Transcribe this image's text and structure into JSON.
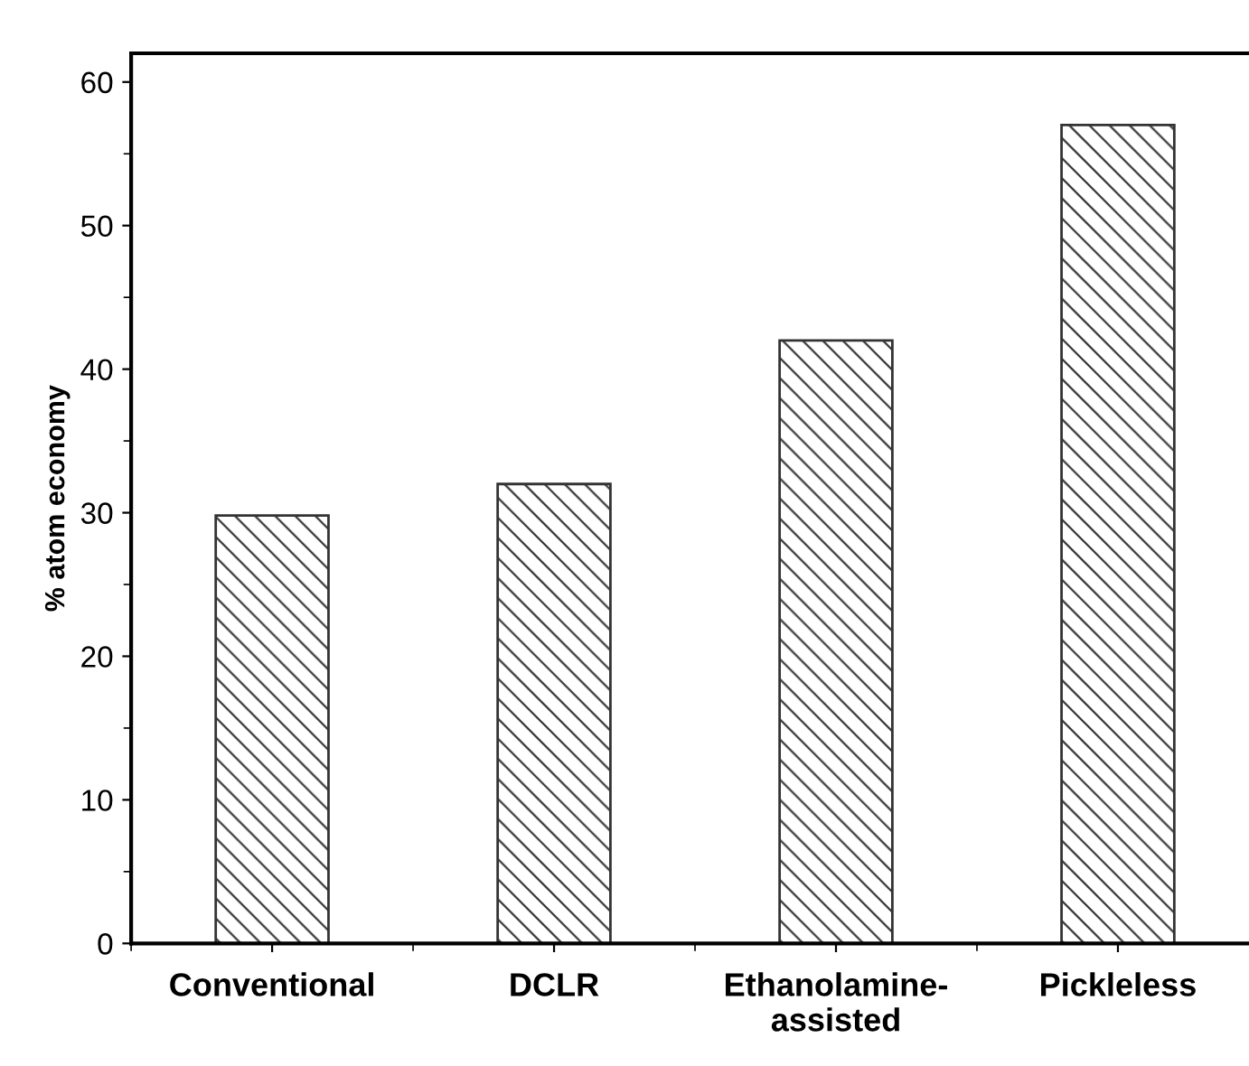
{
  "chart_data": {
    "type": "bar",
    "ylabel": "% atom economy",
    "categories": [
      "Conventional",
      "DCLR",
      "Ethanolamine-\nassisted",
      "Pickleless"
    ],
    "values": [
      29.8,
      32,
      42,
      57
    ],
    "color": "#333333",
    "ylim": [
      0,
      62
    ],
    "yticks": [
      0,
      10,
      20,
      30,
      40,
      50,
      60
    ],
    "grid": false
  }
}
